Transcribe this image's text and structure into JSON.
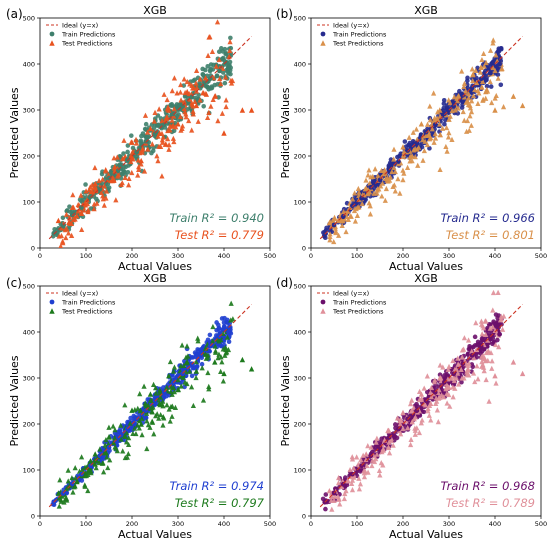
{
  "figure": {
    "panels": [
      {
        "panel_label": "(a)",
        "title": "XGB",
        "xlabel": "Actual Values",
        "ylabel": "Predicted Values",
        "legend": [
          "Ideal (y=x)",
          "Train Predictions",
          "Test Predictions"
        ],
        "train_r2_text": "Train R² = 0.940",
        "test_r2_text": "Test R² = 0.779",
        "colors": {
          "train": "#3e7f6c",
          "test": "#e8521f",
          "ideal": "#cc3322"
        },
        "train_marker": "circle",
        "test_marker": "triangle"
      },
      {
        "panel_label": "(b)",
        "title": "XGB",
        "xlabel": "Actual Values",
        "ylabel": "Predicted Values",
        "legend": [
          "Ideal (y=x)",
          "Train Predictions",
          "Test Predictions"
        ],
        "train_r2_text": "Train R² = 0.966",
        "test_r2_text": "Test R² = 0.801",
        "colors": {
          "train": "#262b8f",
          "test": "#d9904a",
          "ideal": "#cc3322"
        },
        "train_marker": "circle",
        "test_marker": "triangle"
      },
      {
        "panel_label": "(c)",
        "title": "XGB",
        "xlabel": "Actual Values",
        "ylabel": "Predicted Values",
        "legend": [
          "Ideal (y=x)",
          "Train Predictions",
          "Test Predictions"
        ],
        "train_r2_text": "Train R² = 0.974",
        "test_r2_text": "Test R² = 0.797",
        "colors": {
          "train": "#1f3fd0",
          "test": "#1d7a1d",
          "ideal": "#cc3322"
        },
        "train_marker": "circle",
        "test_marker": "triangle"
      },
      {
        "panel_label": "(d)",
        "title": "XGB",
        "xlabel": "Actual Values",
        "ylabel": "Predicted Values",
        "legend": [
          "Ideal (y=x)",
          "Train Predictions",
          "Test Predictions"
        ],
        "train_r2_text": "Train R² = 0.968",
        "test_r2_text": "Test R² = 0.789",
        "colors": {
          "train": "#6b0f6b",
          "test": "#e0909a",
          "ideal": "#cc3322"
        },
        "train_marker": "circle",
        "test_marker": "triangle"
      }
    ]
  },
  "chart_data": [
    {
      "type": "scatter",
      "title": "XGB",
      "xlabel": "Actual Values",
      "ylabel": "Predicted Values",
      "xlim": [
        0,
        500
      ],
      "ylim": [
        0,
        500
      ],
      "xticks": [
        0,
        100,
        200,
        300,
        400,
        500
      ],
      "yticks": [
        0,
        100,
        200,
        300,
        400,
        500
      ],
      "series": [
        {
          "name": "Ideal (y=x)",
          "style": "dashed-line",
          "x": [
            20,
            460
          ],
          "y": [
            20,
            460
          ]
        },
        {
          "name": "Train Predictions",
          "marker": "circle",
          "x": [
            30,
            50,
            70,
            90,
            110,
            130,
            150,
            170,
            190,
            210,
            230,
            250,
            270,
            290,
            310,
            330,
            350,
            370,
            390,
            410
          ],
          "y": [
            32,
            48,
            72,
            88,
            112,
            128,
            152,
            168,
            192,
            208,
            232,
            248,
            268,
            292,
            308,
            328,
            352,
            368,
            385,
            390
          ]
        },
        {
          "name": "Test Predictions",
          "marker": "triangle",
          "x": [
            40,
            80,
            120,
            160,
            200,
            220,
            240,
            260,
            280,
            300,
            320,
            340,
            360,
            380,
            400,
            440,
            460
          ],
          "y": [
            60,
            70,
            140,
            150,
            230,
            190,
            260,
            250,
            300,
            270,
            340,
            310,
            370,
            330,
            250,
            300,
            300
          ]
        }
      ],
      "annotations": [
        "Train R² = 0.940",
        "Test R² = 0.779"
      ]
    },
    {
      "type": "scatter",
      "title": "XGB",
      "xlabel": "Actual Values",
      "ylabel": "Predicted Values",
      "xlim": [
        0,
        500
      ],
      "ylim": [
        0,
        500
      ],
      "xticks": [
        0,
        100,
        200,
        300,
        400,
        500
      ],
      "yticks": [
        0,
        100,
        200,
        300,
        400,
        500
      ],
      "series": [
        {
          "name": "Ideal (y=x)",
          "style": "dashed-line",
          "x": [
            20,
            460
          ],
          "y": [
            20,
            460
          ]
        },
        {
          "name": "Train Predictions",
          "marker": "circle",
          "x": [
            30,
            50,
            70,
            90,
            110,
            130,
            150,
            170,
            190,
            210,
            230,
            250,
            270,
            290,
            310,
            330,
            350,
            370,
            390,
            410
          ],
          "y": [
            30,
            50,
            68,
            92,
            108,
            132,
            148,
            172,
            188,
            212,
            228,
            252,
            268,
            292,
            308,
            332,
            348,
            368,
            380,
            400
          ]
        },
        {
          "name": "Test Predictions",
          "marker": "triangle",
          "x": [
            40,
            80,
            120,
            160,
            200,
            220,
            240,
            260,
            280,
            300,
            320,
            340,
            360,
            380,
            400,
            440,
            460
          ],
          "y": [
            55,
            80,
            130,
            170,
            220,
            200,
            270,
            240,
            300,
            280,
            330,
            320,
            360,
            340,
            300,
            330,
            310
          ]
        }
      ],
      "annotations": [
        "Train R² = 0.966",
        "Test R² = 0.801"
      ]
    },
    {
      "type": "scatter",
      "title": "XGB",
      "xlabel": "Actual Values",
      "ylabel": "Predicted Values",
      "xlim": [
        0,
        500
      ],
      "ylim": [
        0,
        500
      ],
      "xticks": [
        0,
        100,
        200,
        300,
        400,
        500
      ],
      "yticks": [
        0,
        100,
        200,
        300,
        400,
        500
      ],
      "series": [
        {
          "name": "Ideal (y=x)",
          "style": "dashed-line",
          "x": [
            20,
            460
          ],
          "y": [
            20,
            460
          ]
        },
        {
          "name": "Train Predictions",
          "marker": "circle",
          "x": [
            30,
            50,
            70,
            90,
            110,
            130,
            150,
            170,
            190,
            210,
            230,
            250,
            270,
            290,
            310,
            330,
            350,
            370,
            390,
            410
          ],
          "y": [
            31,
            49,
            70,
            91,
            109,
            131,
            149,
            171,
            189,
            211,
            229,
            251,
            269,
            291,
            309,
            331,
            349,
            369,
            390,
            400
          ]
        },
        {
          "name": "Test Predictions",
          "marker": "triangle",
          "x": [
            40,
            80,
            120,
            160,
            200,
            220,
            240,
            260,
            280,
            300,
            320,
            340,
            360,
            380,
            400,
            440,
            460
          ],
          "y": [
            50,
            75,
            135,
            160,
            230,
            200,
            265,
            245,
            305,
            275,
            335,
            315,
            365,
            335,
            310,
            340,
            320
          ]
        }
      ],
      "annotations": [
        "Train R² = 0.974",
        "Test R² = 0.797"
      ]
    },
    {
      "type": "scatter",
      "title": "XGB",
      "xlabel": "Actual Values",
      "ylabel": "Predicted Values",
      "xlim": [
        0,
        500
      ],
      "ylim": [
        0,
        500
      ],
      "xticks": [
        0,
        100,
        200,
        300,
        400,
        500
      ],
      "yticks": [
        0,
        100,
        200,
        300,
        400,
        500
      ],
      "series": [
        {
          "name": "Ideal (y=x)",
          "style": "dashed-line",
          "x": [
            20,
            460
          ],
          "y": [
            20,
            460
          ]
        },
        {
          "name": "Train Predictions",
          "marker": "circle",
          "x": [
            30,
            50,
            70,
            90,
            110,
            130,
            150,
            170,
            190,
            210,
            230,
            250,
            270,
            290,
            310,
            330,
            350,
            370,
            390,
            410
          ],
          "y": [
            30,
            50,
            69,
            91,
            109,
            131,
            149,
            171,
            189,
            211,
            229,
            251,
            269,
            291,
            309,
            331,
            349,
            369,
            385,
            395
          ]
        },
        {
          "name": "Test Predictions",
          "marker": "triangle",
          "x": [
            40,
            80,
            120,
            160,
            200,
            220,
            240,
            260,
            280,
            300,
            320,
            340,
            360,
            380,
            400,
            440,
            460
          ],
          "y": [
            55,
            78,
            135,
            165,
            225,
            205,
            265,
            245,
            300,
            280,
            330,
            318,
            362,
            338,
            305,
            335,
            310
          ]
        }
      ],
      "annotations": [
        "Train R² = 0.968",
        "Test R² = 0.789"
      ]
    }
  ]
}
